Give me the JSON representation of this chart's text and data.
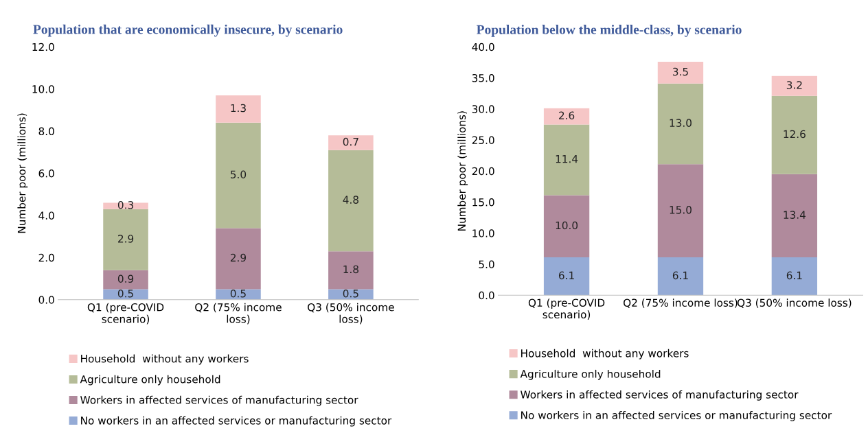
{
  "chart_data": [
    {
      "type": "bar",
      "title": "Population that are economically insecure, by scenario",
      "ylabel": "Number poor (millions)",
      "stacked": true,
      "legend": "bottom",
      "grid": false,
      "categories": [
        "Q1 (pre-COVID\nscenario)",
        "Q2 (75% income\nloss)",
        "Q3 (50% income\nloss)"
      ],
      "ylim": [
        0,
        12
      ],
      "yticks": [
        {
          "value": 0,
          "label": "0.0"
        },
        {
          "value": 2,
          "label": "2.0"
        },
        {
          "value": 4,
          "label": "4.0"
        },
        {
          "value": 6,
          "label": "6.0"
        },
        {
          "value": 8,
          "label": "8.0"
        },
        {
          "value": 10,
          "label": "10.0"
        },
        {
          "value": 12,
          "label": "12.0"
        }
      ],
      "series": [
        {
          "name": "No workers in an affected services or manufacturing sector",
          "color": "#95abd6",
          "values": [
            0.5,
            0.5,
            0.5
          ],
          "value_labels": [
            "0.5",
            "0.5",
            "0.5"
          ]
        },
        {
          "name": "Workers in affected services of manufacturing sector",
          "color": "#b08a9c",
          "values": [
            0.9,
            2.9,
            1.8
          ],
          "value_labels": [
            "0.9",
            "2.9",
            "1.8"
          ]
        },
        {
          "name": "Agriculture only household",
          "color": "#b5bc98",
          "values": [
            2.9,
            5.0,
            4.8
          ],
          "value_labels": [
            "2.9",
            "5.0",
            "4.8"
          ]
        },
        {
          "name": "Household  without any workers",
          "color": "#f6c6c6",
          "values": [
            0.3,
            1.3,
            0.7
          ],
          "value_labels": [
            "0.3",
            "1.3",
            "0.7"
          ]
        }
      ]
    },
    {
      "type": "bar",
      "title": "Population below the middle-class, by scenario",
      "ylabel": "Number poor (millions)",
      "stacked": true,
      "legend": "bottom",
      "grid": false,
      "categories": [
        "Q1 (pre-COVID\nscenario)",
        "Q2 (75% income loss)",
        "Q3 (50% income loss)"
      ],
      "ylim": [
        0,
        40
      ],
      "yticks": [
        {
          "value": 0,
          "label": "0.0"
        },
        {
          "value": 5,
          "label": "5.0"
        },
        {
          "value": 10,
          "label": "10.0"
        },
        {
          "value": 15,
          "label": "15.0"
        },
        {
          "value": 20,
          "label": "20.0"
        },
        {
          "value": 25,
          "label": "25.0"
        },
        {
          "value": 30,
          "label": "30.0"
        },
        {
          "value": 35,
          "label": "35.0"
        },
        {
          "value": 40,
          "label": "40.0"
        }
      ],
      "series": [
        {
          "name": "No workers in an affected services or manufacturing sector",
          "color": "#95abd6",
          "values": [
            6.1,
            6.1,
            6.1
          ],
          "value_labels": [
            "6.1",
            "6.1",
            "6.1"
          ]
        },
        {
          "name": "Workers in affected services of manufacturing sector",
          "color": "#b08a9c",
          "values": [
            10.0,
            15.0,
            13.4
          ],
          "value_labels": [
            "10.0",
            "15.0",
            "13.4"
          ]
        },
        {
          "name": "Agriculture only household",
          "color": "#b5bc98",
          "values": [
            11.4,
            13.0,
            12.6
          ],
          "value_labels": [
            "11.4",
            "13.0",
            "12.6"
          ]
        },
        {
          "name": "Household  without any workers",
          "color": "#f6c6c6",
          "values": [
            2.6,
            3.5,
            3.2
          ],
          "value_labels": [
            "2.6",
            "3.5",
            "3.2"
          ]
        }
      ]
    }
  ]
}
